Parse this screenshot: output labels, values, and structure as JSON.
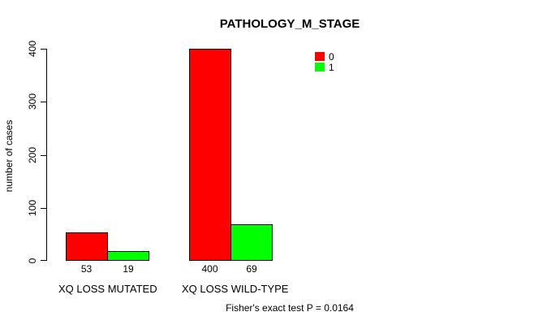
{
  "colors": {
    "background": "#FFFFFF",
    "axis": "#000000",
    "text": "#000000",
    "series0": "#FF0000",
    "series1": "#00FF00"
  },
  "chart_data": {
    "type": "bar",
    "title": "PATHOLOGY_M_STAGE",
    "ylabel": "number of cases",
    "xlabel": "",
    "categories": [
      "XQ LOSS MUTATED",
      "XQ LOSS WILD-TYPE"
    ],
    "series": [
      {
        "name": "0",
        "color": "#FF0000",
        "values": [
          53,
          400
        ]
      },
      {
        "name": "1",
        "color": "#00FF00",
        "values": [
          19,
          69
        ]
      }
    ],
    "bar_value_labels": [
      [
        "53",
        "19"
      ],
      [
        "400",
        "69"
      ]
    ],
    "ylim": [
      0,
      400
    ],
    "yticks": [
      0,
      100,
      200,
      300,
      400
    ],
    "grid": false,
    "bar_border_color": "#000000",
    "legend_position": "top-right",
    "legend": {
      "entries": [
        {
          "label": "0",
          "color": "#FF0000"
        },
        {
          "label": "1",
          "color": "#00FF00"
        }
      ]
    },
    "annotation": "Fisher's exact test P = 0.0164"
  }
}
